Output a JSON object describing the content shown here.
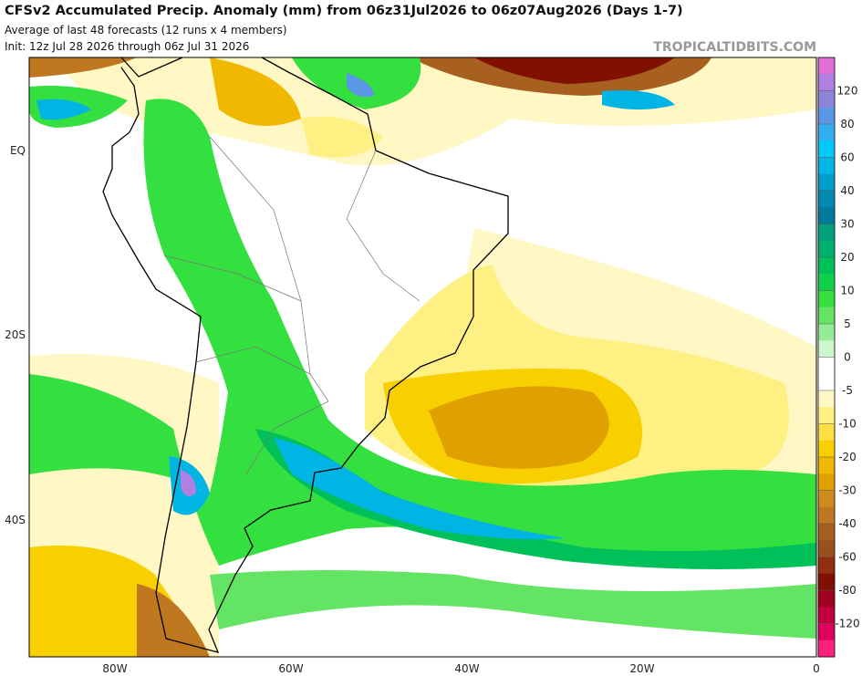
{
  "header": {
    "title": "CFSv2 Accumulated Precip. Anomaly (mm) from 06z31Jul2026 to 06z07Aug2026 (Days 1-7)",
    "subtitle": "Average of last 48 forecasts (12 runs x 4 members)",
    "init": "Init: 12z Jul 28 2026 through 06z Jul 31 2026",
    "watermark": "TROPICALTIDBITS.COM"
  },
  "map": {
    "lat_labels": [
      "EQ",
      "20S",
      "40S"
    ],
    "lon_labels": [
      "80W",
      "60W",
      "40W",
      "20W",
      "0"
    ]
  },
  "colorbar": {
    "colors": [
      "#e070d8",
      "#b080e0",
      "#8c84d8",
      "#5a98e6",
      "#30b0f0",
      "#00c8f8",
      "#00b4e4",
      "#009cca",
      "#008ab2",
      "#007a9a",
      "#00a07e",
      "#00b06c",
      "#00c05a",
      "#10d04c",
      "#34e040",
      "#64e464",
      "#96ec96",
      "#ccf6cc",
      "#ffffff",
      "#ffffff",
      "#fff8c4",
      "#fff084",
      "#ffe044",
      "#f8d000",
      "#f0b800",
      "#e0a000",
      "#d08a20",
      "#c07820",
      "#a86020",
      "#985020",
      "#903010",
      "#801000",
      "#a00020",
      "#c00040",
      "#e00060",
      "#ff2080"
    ],
    "ticks": [
      120,
      80,
      60,
      40,
      30,
      20,
      10,
      5,
      0,
      -5,
      -10,
      -20,
      -30,
      -40,
      -60,
      -80,
      -120
    ]
  }
}
